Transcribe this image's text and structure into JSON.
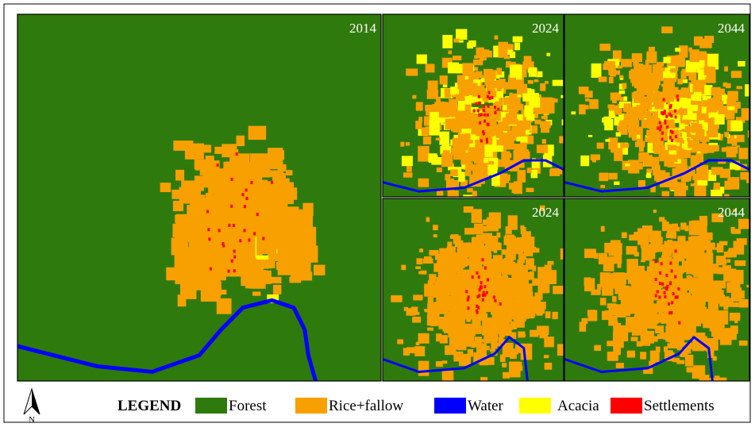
{
  "panels": [
    {
      "label": "2014"
    },
    {
      "label": "2024"
    },
    {
      "label": "2044"
    },
    {
      "label": "2024"
    },
    {
      "label": "2044"
    }
  ],
  "legend": {
    "title": "LEGEND",
    "items": [
      {
        "name": "Forest",
        "color": "#2f7a0c"
      },
      {
        "name": "Rice+fallow",
        "color": "#f7a000"
      },
      {
        "name": "Water",
        "color": "#0000ff"
      },
      {
        "name": "Acacia",
        "color": "#ffff00"
      },
      {
        "name": "Settlements",
        "color": "#ff0000"
      }
    ]
  },
  "north": {
    "label": "N"
  }
}
